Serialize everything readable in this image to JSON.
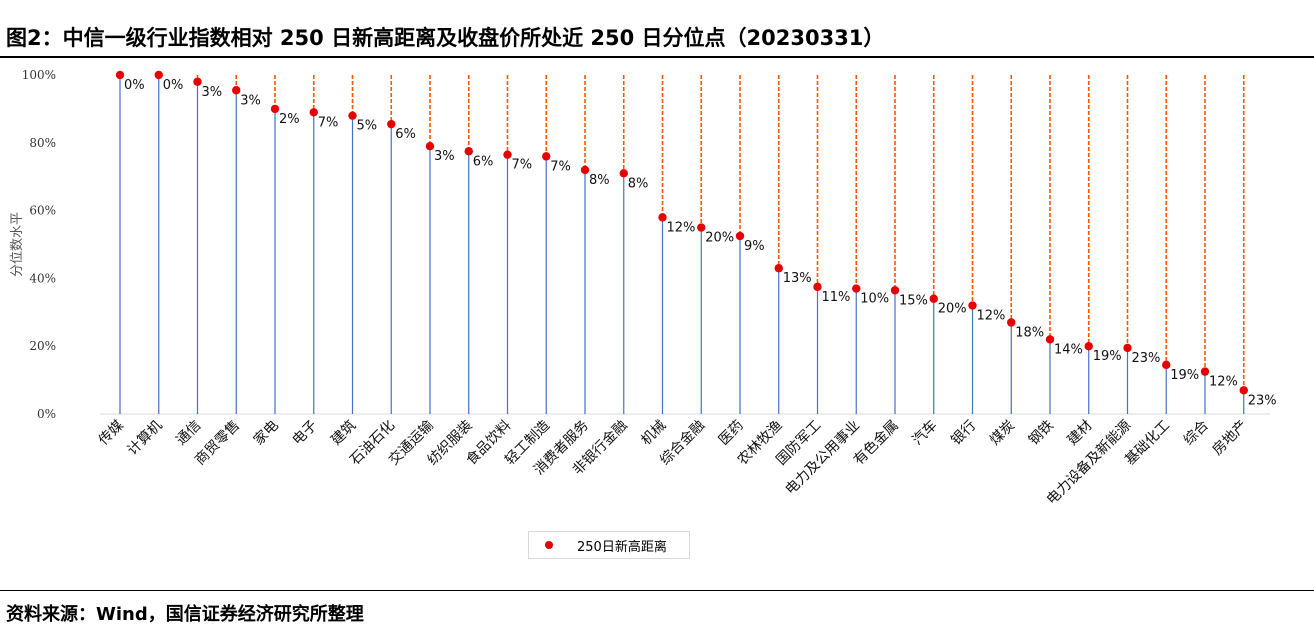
{
  "title": "图2：中信一级行业指数相对 250 日新高距离及收盘价所处近 250 日分位点（20230331）",
  "source": "资料来源：Wind，国信证券经济研究所整理",
  "legend_label": "250日新高距离",
  "colors": {
    "stem": "#4472c4",
    "dash": "#ff5500",
    "marker": "#e60000",
    "axis": "#d9d9d9"
  },
  "chart_data": {
    "type": "scatter",
    "ylabel": "分位数水平",
    "ylim": [
      0,
      100
    ],
    "yticks": [
      "0%",
      "20%",
      "40%",
      "60%",
      "80%",
      "100%"
    ],
    "categories": [
      "传媒",
      "计算机",
      "通信",
      "商贸零售",
      "家电",
      "电子",
      "建筑",
      "石油石化",
      "交通运输",
      "纺织服装",
      "食品饮料",
      "轻工制造",
      "消费者服务",
      "非银行金融",
      "机械",
      "综合金融",
      "医药",
      "农林牧渔",
      "国防军工",
      "电力及公用事业",
      "有色金属",
      "汽车",
      "银行",
      "煤炭",
      "钢铁",
      "建材",
      "电力设备及新能源",
      "基础化工",
      "综合",
      "房地产"
    ],
    "series": [
      {
        "name": "250日新高距离",
        "percentile": [
          100,
          100,
          98,
          95.5,
          90,
          89,
          88,
          85.5,
          79,
          77.5,
          76.5,
          76,
          72,
          71,
          58,
          55,
          52.5,
          43,
          37.5,
          37,
          36.5,
          34,
          32,
          27,
          22,
          20,
          19.5,
          14.5,
          12.5,
          7
        ],
        "labels": [
          "0%",
          "0%",
          "3%",
          "3%",
          "2%",
          "7%",
          "5%",
          "6%",
          "3%",
          "6%",
          "7%",
          "7%",
          "8%",
          "8%",
          "12%",
          "20%",
          "9%",
          "13%",
          "11%",
          "10%",
          "15%",
          "20%",
          "12%",
          "18%",
          "14%",
          "19%",
          "23%",
          "19%",
          "12%",
          "23%"
        ]
      }
    ],
    "grid": false,
    "legend_position": "bottom-center"
  }
}
